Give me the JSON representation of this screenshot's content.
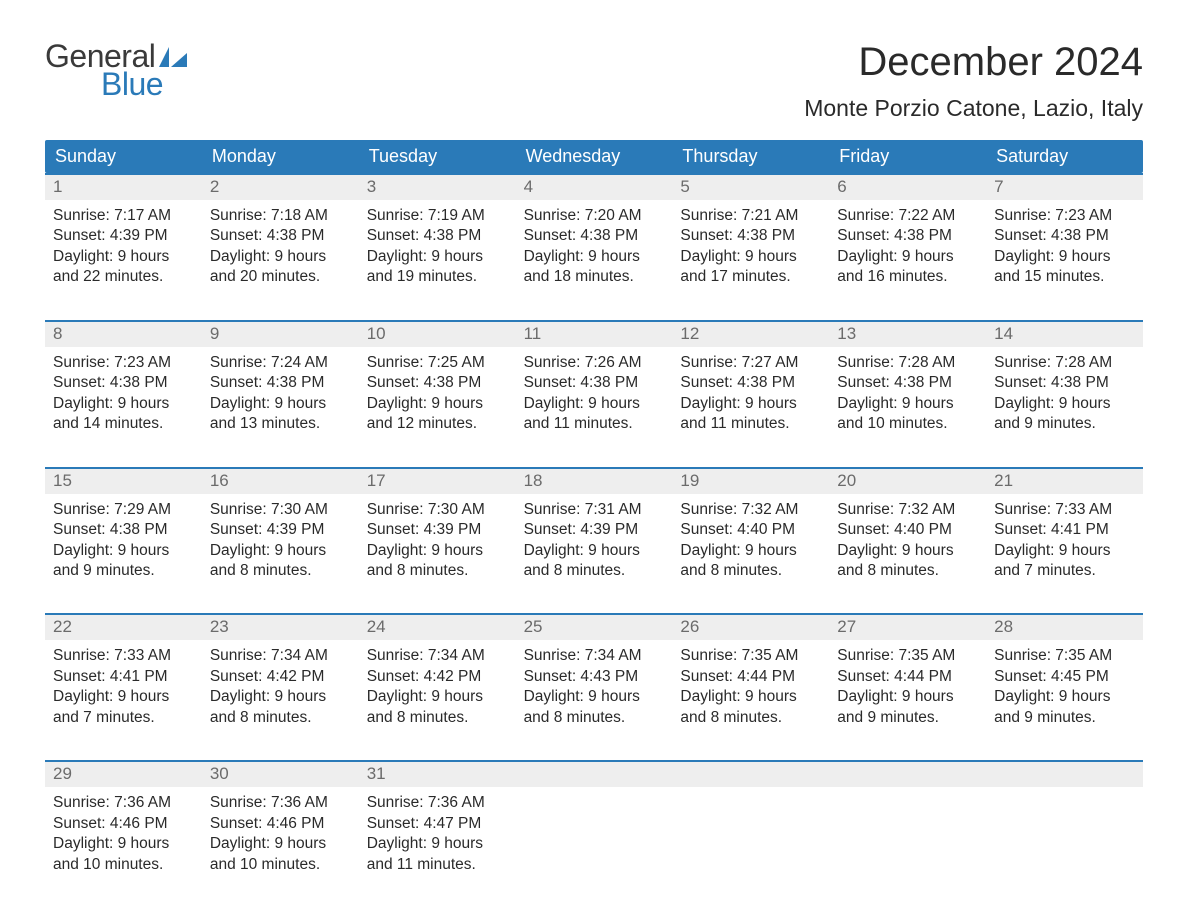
{
  "logo": {
    "text_general": "General",
    "text_blue": "Blue",
    "flag_color": "#2a7ab8"
  },
  "title": "December 2024",
  "location": "Monte Porzio Catone, Lazio, Italy",
  "colors": {
    "header_bg": "#2a7ab8",
    "header_text": "#ffffff",
    "daynum_bg": "#eeeeee",
    "daynum_text": "#6b6b6b",
    "body_text": "#2a2a2a",
    "week_border": "#2a7ab8",
    "page_bg": "#ffffff"
  },
  "fonts": {
    "title_size_pt": 30,
    "location_size_pt": 17,
    "header_size_pt": 14,
    "daynum_size_pt": 13,
    "cell_size_pt": 12,
    "family": "Arial"
  },
  "day_labels": [
    "Sunday",
    "Monday",
    "Tuesday",
    "Wednesday",
    "Thursday",
    "Friday",
    "Saturday"
  ],
  "weeks": [
    [
      {
        "n": "1",
        "sunrise": "Sunrise: 7:17 AM",
        "sunset": "Sunset: 4:39 PM",
        "d1": "Daylight: 9 hours",
        "d2": "and 22 minutes."
      },
      {
        "n": "2",
        "sunrise": "Sunrise: 7:18 AM",
        "sunset": "Sunset: 4:38 PM",
        "d1": "Daylight: 9 hours",
        "d2": "and 20 minutes."
      },
      {
        "n": "3",
        "sunrise": "Sunrise: 7:19 AM",
        "sunset": "Sunset: 4:38 PM",
        "d1": "Daylight: 9 hours",
        "d2": "and 19 minutes."
      },
      {
        "n": "4",
        "sunrise": "Sunrise: 7:20 AM",
        "sunset": "Sunset: 4:38 PM",
        "d1": "Daylight: 9 hours",
        "d2": "and 18 minutes."
      },
      {
        "n": "5",
        "sunrise": "Sunrise: 7:21 AM",
        "sunset": "Sunset: 4:38 PM",
        "d1": "Daylight: 9 hours",
        "d2": "and 17 minutes."
      },
      {
        "n": "6",
        "sunrise": "Sunrise: 7:22 AM",
        "sunset": "Sunset: 4:38 PM",
        "d1": "Daylight: 9 hours",
        "d2": "and 16 minutes."
      },
      {
        "n": "7",
        "sunrise": "Sunrise: 7:23 AM",
        "sunset": "Sunset: 4:38 PM",
        "d1": "Daylight: 9 hours",
        "d2": "and 15 minutes."
      }
    ],
    [
      {
        "n": "8",
        "sunrise": "Sunrise: 7:23 AM",
        "sunset": "Sunset: 4:38 PM",
        "d1": "Daylight: 9 hours",
        "d2": "and 14 minutes."
      },
      {
        "n": "9",
        "sunrise": "Sunrise: 7:24 AM",
        "sunset": "Sunset: 4:38 PM",
        "d1": "Daylight: 9 hours",
        "d2": "and 13 minutes."
      },
      {
        "n": "10",
        "sunrise": "Sunrise: 7:25 AM",
        "sunset": "Sunset: 4:38 PM",
        "d1": "Daylight: 9 hours",
        "d2": "and 12 minutes."
      },
      {
        "n": "11",
        "sunrise": "Sunrise: 7:26 AM",
        "sunset": "Sunset: 4:38 PM",
        "d1": "Daylight: 9 hours",
        "d2": "and 11 minutes."
      },
      {
        "n": "12",
        "sunrise": "Sunrise: 7:27 AM",
        "sunset": "Sunset: 4:38 PM",
        "d1": "Daylight: 9 hours",
        "d2": "and 11 minutes."
      },
      {
        "n": "13",
        "sunrise": "Sunrise: 7:28 AM",
        "sunset": "Sunset: 4:38 PM",
        "d1": "Daylight: 9 hours",
        "d2": "and 10 minutes."
      },
      {
        "n": "14",
        "sunrise": "Sunrise: 7:28 AM",
        "sunset": "Sunset: 4:38 PM",
        "d1": "Daylight: 9 hours",
        "d2": "and 9 minutes."
      }
    ],
    [
      {
        "n": "15",
        "sunrise": "Sunrise: 7:29 AM",
        "sunset": "Sunset: 4:38 PM",
        "d1": "Daylight: 9 hours",
        "d2": "and 9 minutes."
      },
      {
        "n": "16",
        "sunrise": "Sunrise: 7:30 AM",
        "sunset": "Sunset: 4:39 PM",
        "d1": "Daylight: 9 hours",
        "d2": "and 8 minutes."
      },
      {
        "n": "17",
        "sunrise": "Sunrise: 7:30 AM",
        "sunset": "Sunset: 4:39 PM",
        "d1": "Daylight: 9 hours",
        "d2": "and 8 minutes."
      },
      {
        "n": "18",
        "sunrise": "Sunrise: 7:31 AM",
        "sunset": "Sunset: 4:39 PM",
        "d1": "Daylight: 9 hours",
        "d2": "and 8 minutes."
      },
      {
        "n": "19",
        "sunrise": "Sunrise: 7:32 AM",
        "sunset": "Sunset: 4:40 PM",
        "d1": "Daylight: 9 hours",
        "d2": "and 8 minutes."
      },
      {
        "n": "20",
        "sunrise": "Sunrise: 7:32 AM",
        "sunset": "Sunset: 4:40 PM",
        "d1": "Daylight: 9 hours",
        "d2": "and 8 minutes."
      },
      {
        "n": "21",
        "sunrise": "Sunrise: 7:33 AM",
        "sunset": "Sunset: 4:41 PM",
        "d1": "Daylight: 9 hours",
        "d2": "and 7 minutes."
      }
    ],
    [
      {
        "n": "22",
        "sunrise": "Sunrise: 7:33 AM",
        "sunset": "Sunset: 4:41 PM",
        "d1": "Daylight: 9 hours",
        "d2": "and 7 minutes."
      },
      {
        "n": "23",
        "sunrise": "Sunrise: 7:34 AM",
        "sunset": "Sunset: 4:42 PM",
        "d1": "Daylight: 9 hours",
        "d2": "and 8 minutes."
      },
      {
        "n": "24",
        "sunrise": "Sunrise: 7:34 AM",
        "sunset": "Sunset: 4:42 PM",
        "d1": "Daylight: 9 hours",
        "d2": "and 8 minutes."
      },
      {
        "n": "25",
        "sunrise": "Sunrise: 7:34 AM",
        "sunset": "Sunset: 4:43 PM",
        "d1": "Daylight: 9 hours",
        "d2": "and 8 minutes."
      },
      {
        "n": "26",
        "sunrise": "Sunrise: 7:35 AM",
        "sunset": "Sunset: 4:44 PM",
        "d1": "Daylight: 9 hours",
        "d2": "and 8 minutes."
      },
      {
        "n": "27",
        "sunrise": "Sunrise: 7:35 AM",
        "sunset": "Sunset: 4:44 PM",
        "d1": "Daylight: 9 hours",
        "d2": "and 9 minutes."
      },
      {
        "n": "28",
        "sunrise": "Sunrise: 7:35 AM",
        "sunset": "Sunset: 4:45 PM",
        "d1": "Daylight: 9 hours",
        "d2": "and 9 minutes."
      }
    ],
    [
      {
        "n": "29",
        "sunrise": "Sunrise: 7:36 AM",
        "sunset": "Sunset: 4:46 PM",
        "d1": "Daylight: 9 hours",
        "d2": "and 10 minutes."
      },
      {
        "n": "30",
        "sunrise": "Sunrise: 7:36 AM",
        "sunset": "Sunset: 4:46 PM",
        "d1": "Daylight: 9 hours",
        "d2": "and 10 minutes."
      },
      {
        "n": "31",
        "sunrise": "Sunrise: 7:36 AM",
        "sunset": "Sunset: 4:47 PM",
        "d1": "Daylight: 9 hours",
        "d2": "and 11 minutes."
      },
      null,
      null,
      null,
      null
    ]
  ]
}
